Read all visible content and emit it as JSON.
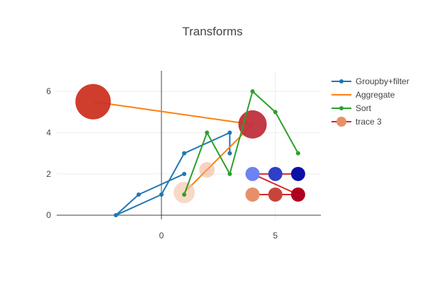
{
  "chart_data": {
    "title": "Transforms",
    "xlim": [
      -4.6,
      7
    ],
    "ylim": [
      -0.2,
      7
    ],
    "x_ticks": [
      0,
      5
    ],
    "y_ticks": [
      0,
      2,
      4,
      6
    ],
    "grid": true,
    "legend_position": "right",
    "series": [
      {
        "name": "Groupby+filter",
        "type": "line",
        "color": "#1f77b4",
        "x": [
          1,
          -1,
          -2,
          0,
          1,
          3,
          3
        ],
        "y": [
          2,
          1,
          0,
          1,
          3,
          4,
          3
        ]
      },
      {
        "name": "Aggregate",
        "type": "line",
        "color": "#ff7f0e",
        "x": [
          -3,
          4,
          4,
          1
        ],
        "y": [
          5.5,
          4.4,
          4.4,
          1.1
        ],
        "markers": [
          {
            "x": -3,
            "y": 5.5,
            "size": 50,
            "color": "#cc3322",
            "opacity": 0.95
          },
          {
            "x": 4,
            "y": 4.4,
            "size": 40,
            "color": "#c0303a",
            "opacity": 0.95
          },
          {
            "x": 1,
            "y": 1.1,
            "size": 30,
            "color": "#f4c4a8",
            "opacity": 0.65
          },
          {
            "x": 2,
            "y": 2.2,
            "size": 22,
            "color": "#f0a880",
            "opacity": 0.5
          }
        ]
      },
      {
        "name": "Sort",
        "type": "line",
        "color": "#2ca02c",
        "x": [
          1,
          2,
          3,
          4,
          5,
          6
        ],
        "y": [
          1,
          4,
          2,
          6,
          5,
          3
        ]
      },
      {
        "name": "trace 3",
        "type": "line",
        "color": "#d62728",
        "segments": [
          [
            [
              4,
              2
            ],
            [
              6,
              2
            ]
          ],
          [
            [
              4,
              1
            ],
            [
              6,
              1
            ]
          ],
          [
            [
              4,
              2
            ],
            [
              6,
              1
            ]
          ]
        ],
        "markers": [
          {
            "x": 4,
            "y": 2,
            "size": 20,
            "color": "#6e82f2"
          },
          {
            "x": 5,
            "y": 2,
            "size": 20,
            "color": "#2f3fc8"
          },
          {
            "x": 6,
            "y": 2,
            "size": 20,
            "color": "#0a0fa8"
          },
          {
            "x": 4,
            "y": 1,
            "size": 20,
            "color": "#e6906a"
          },
          {
            "x": 5,
            "y": 1,
            "size": 20,
            "color": "#c8443a"
          },
          {
            "x": 6,
            "y": 1,
            "size": 20,
            "color": "#b00020"
          }
        ],
        "legend_marker_color": "#e6906a"
      }
    ]
  }
}
